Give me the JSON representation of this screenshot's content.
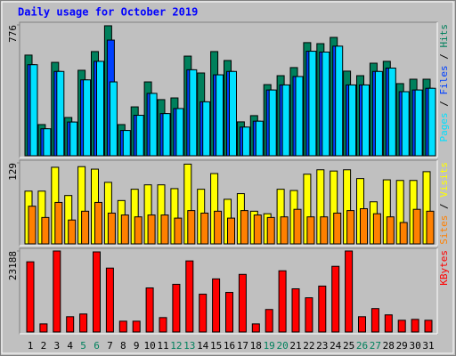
{
  "chart_data": [
    {
      "type": "bar",
      "title": "Daily usage for October 2019",
      "title_color": "#0000ff",
      "legend_separator": " / ",
      "ylim": [
        0,
        776
      ],
      "yticks": [
        776
      ],
      "series": [
        {
          "name": "Pages",
          "color": "#00e0ff",
          "values": [
            540,
            160,
            500,
            200,
            450,
            560,
            438,
            150,
            240,
            370,
            250,
            280,
            510,
            320,
            480,
            500,
            170,
            205,
            390,
            420,
            470,
            620,
            615,
            650,
            420,
            420,
            500,
            520,
            380,
            390,
            400
          ]
        },
        {
          "name": "Files",
          "color": "#0040ff",
          "values": [
            540,
            160,
            500,
            200,
            450,
            560,
            686,
            150,
            240,
            370,
            250,
            280,
            510,
            320,
            480,
            500,
            170,
            205,
            390,
            420,
            470,
            620,
            615,
            650,
            420,
            420,
            500,
            520,
            380,
            390,
            400
          ]
        },
        {
          "name": "Hits",
          "color": "#00805c",
          "values": [
            597,
            185,
            554,
            227,
            507,
            618,
            771,
            185,
            290,
            438,
            333,
            343,
            591,
            491,
            618,
            565,
            201,
            238,
            422,
            475,
            523,
            671,
            665,
            702,
            502,
            475,
            549,
            560,
            428,
            454,
            454
          ]
        }
      ]
    },
    {
      "type": "bar",
      "legend_separator": " / ",
      "ylim": [
        0,
        129
      ],
      "yticks": [
        129
      ],
      "series": [
        {
          "name": "Sites",
          "color": "#ff8000",
          "values": [
            60,
            42,
            66,
            38,
            52,
            66,
            49,
            46,
            43,
            46,
            46,
            41,
            53,
            49,
            52,
            41,
            53,
            46,
            42,
            43,
            55,
            43,
            43,
            49,
            53,
            56,
            48,
            43,
            34,
            55,
            52
          ]
        },
        {
          "name": "Visits",
          "color": "#ffff00",
          "values": [
            84,
            84,
            122,
            77,
            123,
            119,
            98,
            69,
            87,
            94,
            94,
            88,
            127,
            87,
            112,
            71,
            80,
            52,
            48,
            87,
            85,
            111,
            118,
            116,
            118,
            104,
            67,
            102,
            101,
            101,
            115
          ]
        }
      ]
    },
    {
      "type": "bar",
      "ylim": [
        0,
        23188
      ],
      "yticks": [
        23188
      ],
      "series": [
        {
          "name": "KBytes",
          "color": "#ff0000",
          "values": [
            20090,
            2320,
            23188,
            4380,
            5150,
            22930,
            18290,
            3090,
            3090,
            12620,
            4120,
            13650,
            20350,
            10820,
            15200,
            11330,
            16490,
            2320,
            6440,
            17520,
            12360,
            9790,
            13140,
            18800,
            23188,
            4380,
            6700,
            4900,
            3350,
            3610,
            3350
          ]
        }
      ],
      "categories": [
        "1",
        "2",
        "3",
        "4",
        "5",
        "6",
        "7",
        "8",
        "9",
        "10",
        "11",
        "12",
        "13",
        "14",
        "15",
        "16",
        "17",
        "18",
        "19",
        "20",
        "21",
        "22",
        "23",
        "24",
        "25",
        "26",
        "27",
        "28",
        "29",
        "30",
        "31"
      ],
      "category_colors": [
        "#000000",
        "#000000",
        "#000000",
        "#000000",
        "#00805c",
        "#00805c",
        "#000000",
        "#000000",
        "#000000",
        "#000000",
        "#000000",
        "#00805c",
        "#00805c",
        "#000000",
        "#000000",
        "#000000",
        "#000000",
        "#000000",
        "#00805c",
        "#00805c",
        "#000000",
        "#000000",
        "#000000",
        "#000000",
        "#000000",
        "#00805c",
        "#00805c",
        "#000000",
        "#000000",
        "#000000",
        "#000000"
      ]
    }
  ]
}
